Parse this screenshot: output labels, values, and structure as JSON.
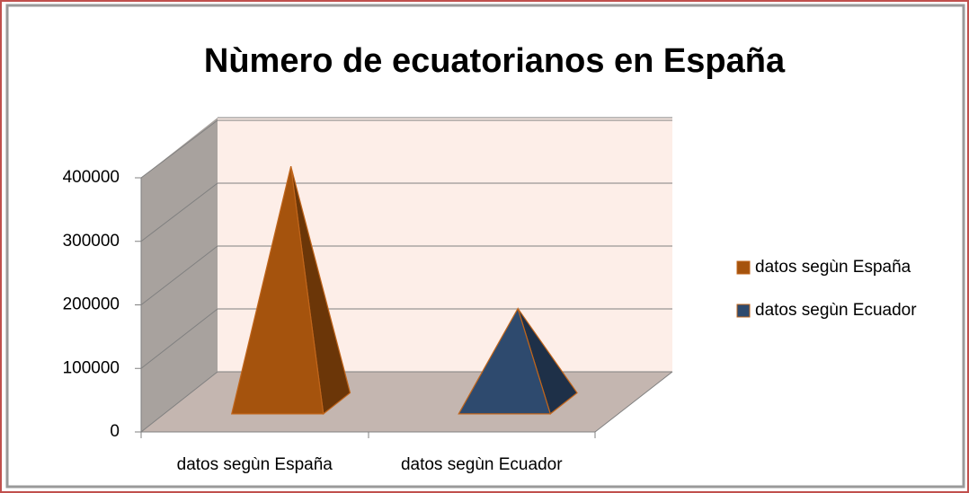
{
  "chart_data": {
    "type": "pyramid",
    "title": "Nùmero de ecuatorianos en España",
    "categories": [
      "datos segùn España",
      "datos segùn Ecuador"
    ],
    "values": [
      375000,
      150000
    ],
    "colors": [
      "#a5530d",
      "#2e4a6e"
    ],
    "ylim": [
      0,
      400000
    ],
    "yticks": [
      0,
      100000,
      200000,
      300000,
      400000
    ],
    "grid": true,
    "legend": "right"
  }
}
